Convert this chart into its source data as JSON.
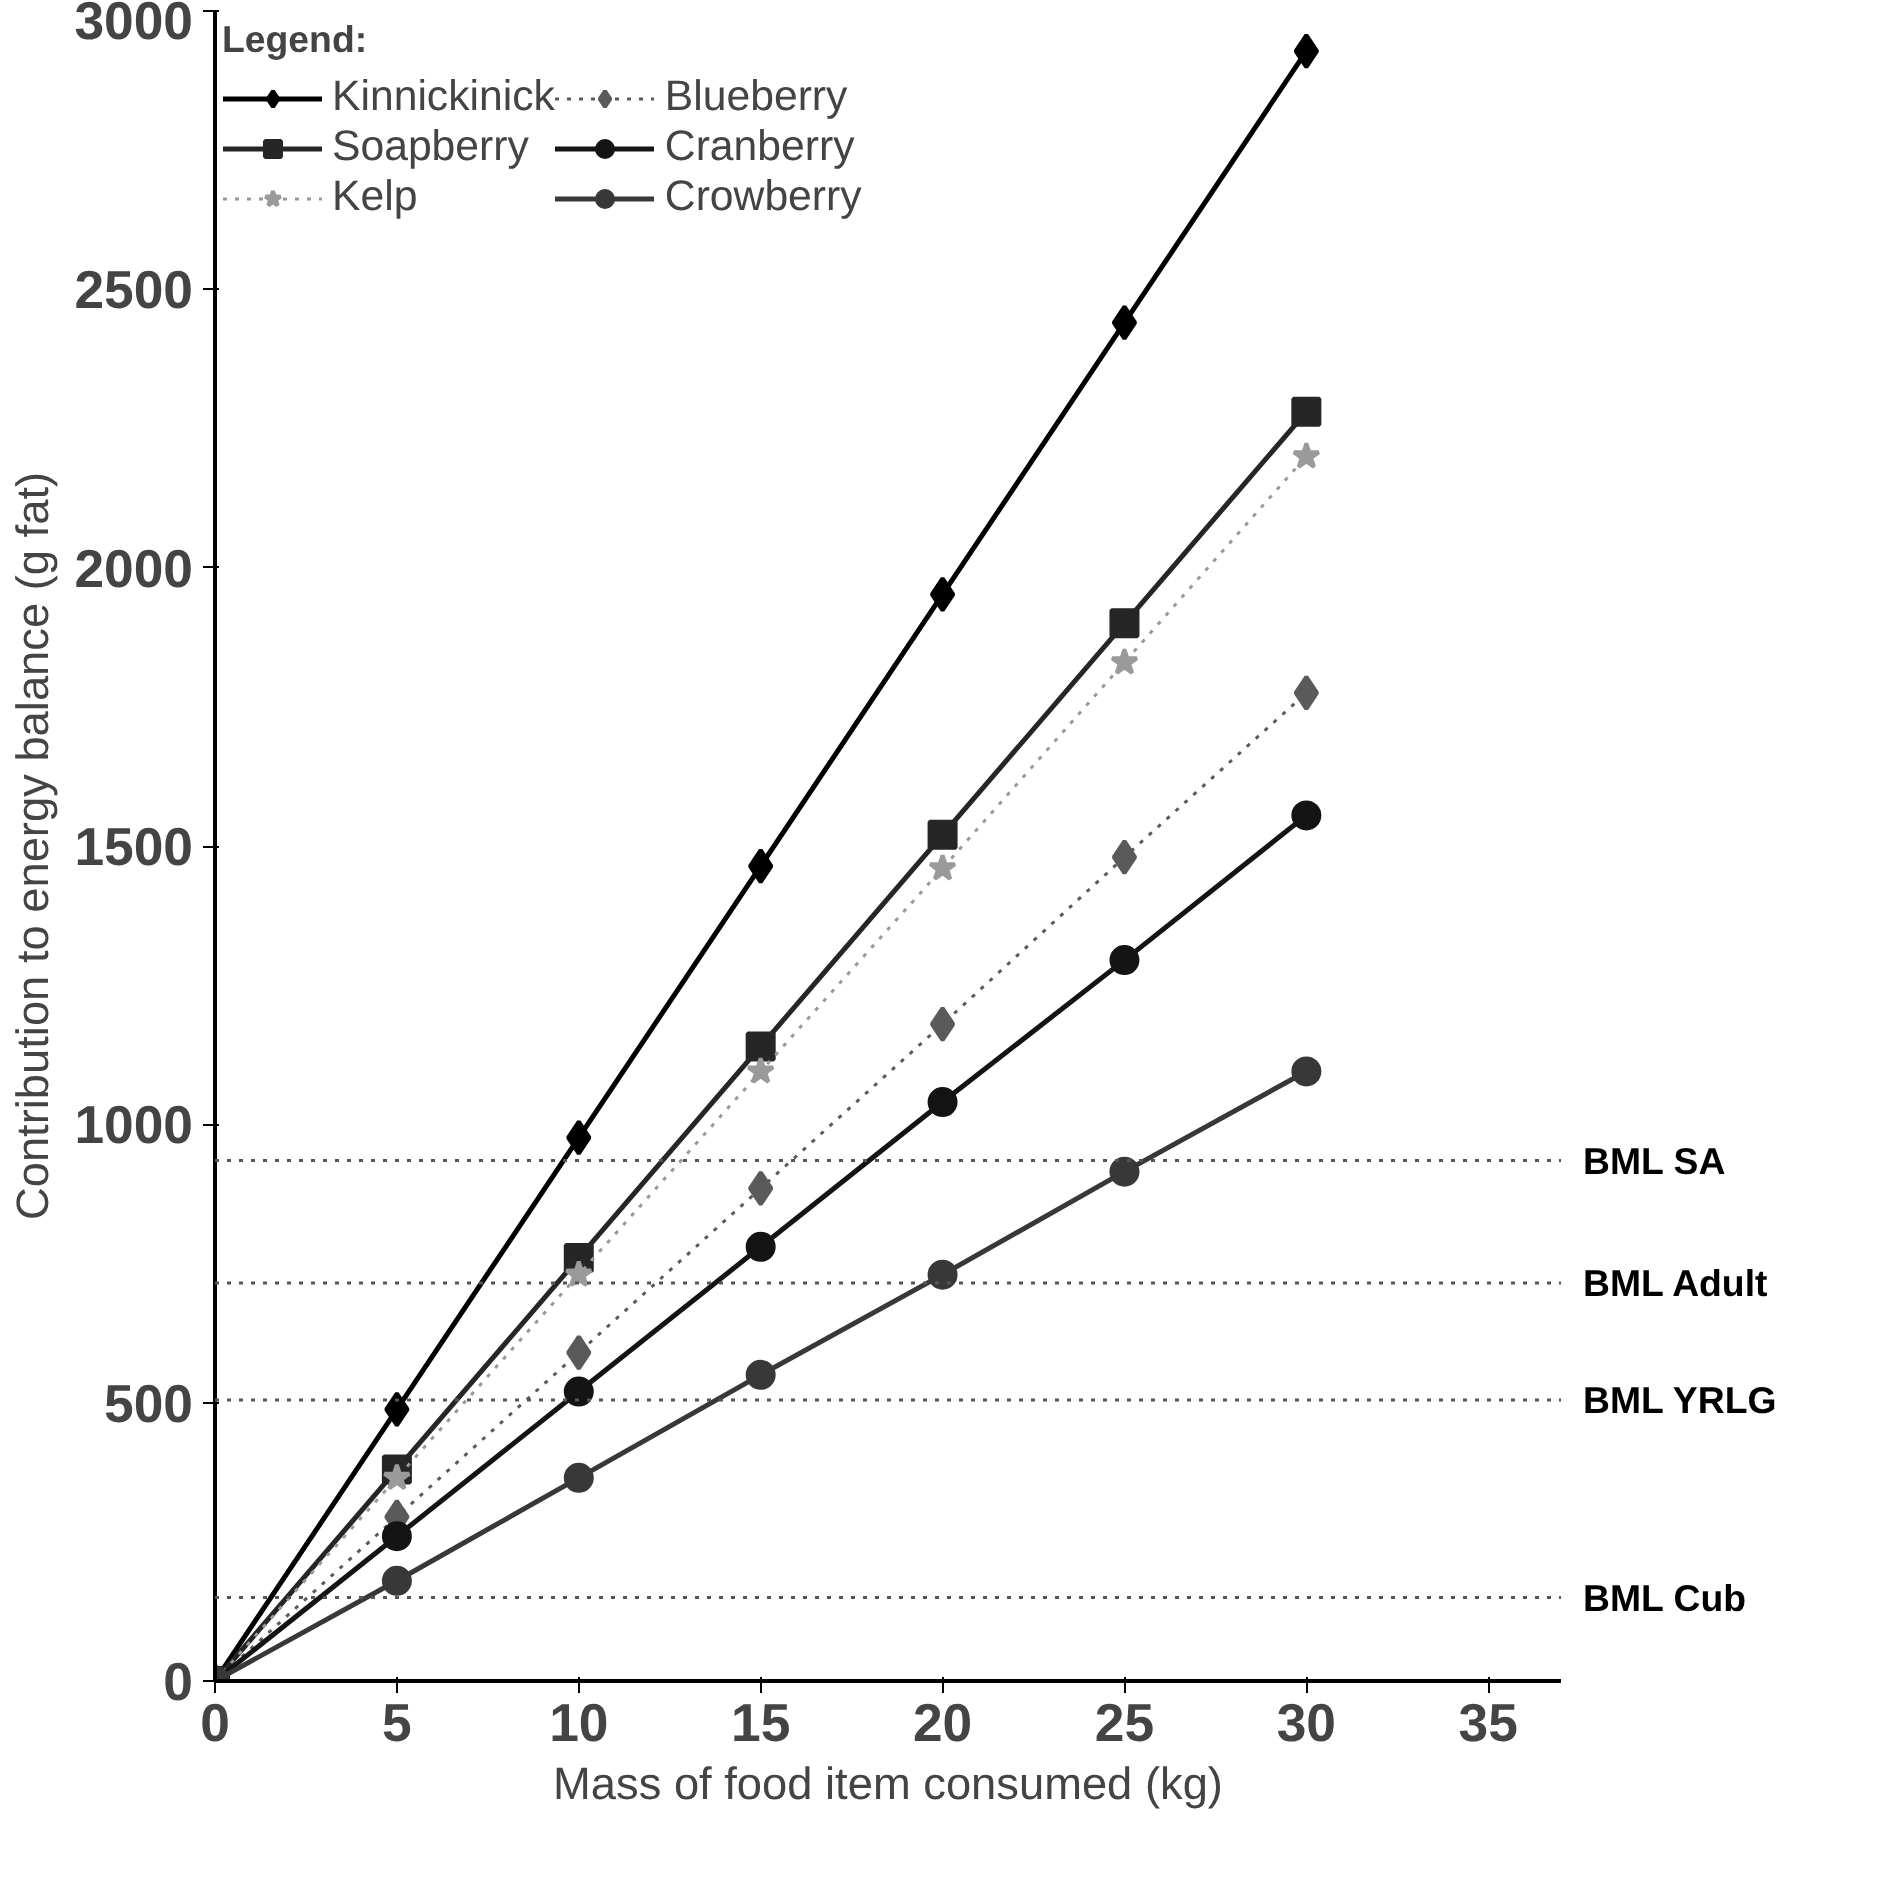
{
  "chart_data": {
    "type": "line",
    "xlabel": "Mass of food item consumed (kg)",
    "ylabel": "Contribution to energy balance (g fat)",
    "legend_title": "Legend:",
    "legend": "top left",
    "grid": false,
    "x": [
      0,
      5,
      10,
      15,
      20,
      25,
      30
    ],
    "xlim": [
      0,
      37
    ],
    "xticks": [
      0,
      5,
      10,
      15,
      20,
      25,
      30,
      35
    ],
    "ylim": [
      0,
      3000
    ],
    "yticks": [
      0,
      500,
      1000,
      1500,
      2000,
      2500,
      3000
    ],
    "series": [
      {
        "name": "Kinnickinick",
        "color": "#000000",
        "marker": "diamond",
        "line_style": "solid",
        "values": [
          0,
          488,
          976,
          1464,
          1952,
          2440,
          2928
        ]
      },
      {
        "name": "Soapberry",
        "color": "#262626",
        "marker": "square",
        "line_style": "solid",
        "values": [
          0,
          380,
          760,
          1140,
          1520,
          1900,
          2280
        ]
      },
      {
        "name": "Kelp",
        "color": "#9a9a9a",
        "marker": "star",
        "line_style": "dotted",
        "values": [
          0,
          365,
          730,
          1095,
          1460,
          1830,
          2200
        ]
      },
      {
        "name": "Blueberry",
        "color": "#5a5a5a",
        "marker": "diamond",
        "line_style": "dotted",
        "values": [
          0,
          295,
          590,
          885,
          1180,
          1480,
          1775
        ]
      },
      {
        "name": "Cranberry",
        "color": "#141414",
        "marker": "circle",
        "line_style": "solid",
        "values": [
          0,
          260,
          520,
          780,
          1040,
          1295,
          1555
        ]
      },
      {
        "name": "Crowberry",
        "color": "#383838",
        "marker": "circle",
        "line_style": "solid",
        "values": [
          0,
          180,
          365,
          550,
          730,
          915,
          1095
        ]
      }
    ],
    "ref_lines": [
      {
        "axis": "y",
        "value": 935,
        "label": "BML SA",
        "color": "#555555",
        "line_style": "dotted"
      },
      {
        "axis": "y",
        "value": 715,
        "label": "BML Adult",
        "color": "#555555",
        "line_style": "dotted"
      },
      {
        "axis": "y",
        "value": 505,
        "label": "BML YRLG",
        "color": "#555555",
        "line_style": "dotted"
      },
      {
        "axis": "y",
        "value": 150,
        "label": "BML Cub",
        "color": "#555555",
        "line_style": "dotted"
      }
    ]
  }
}
